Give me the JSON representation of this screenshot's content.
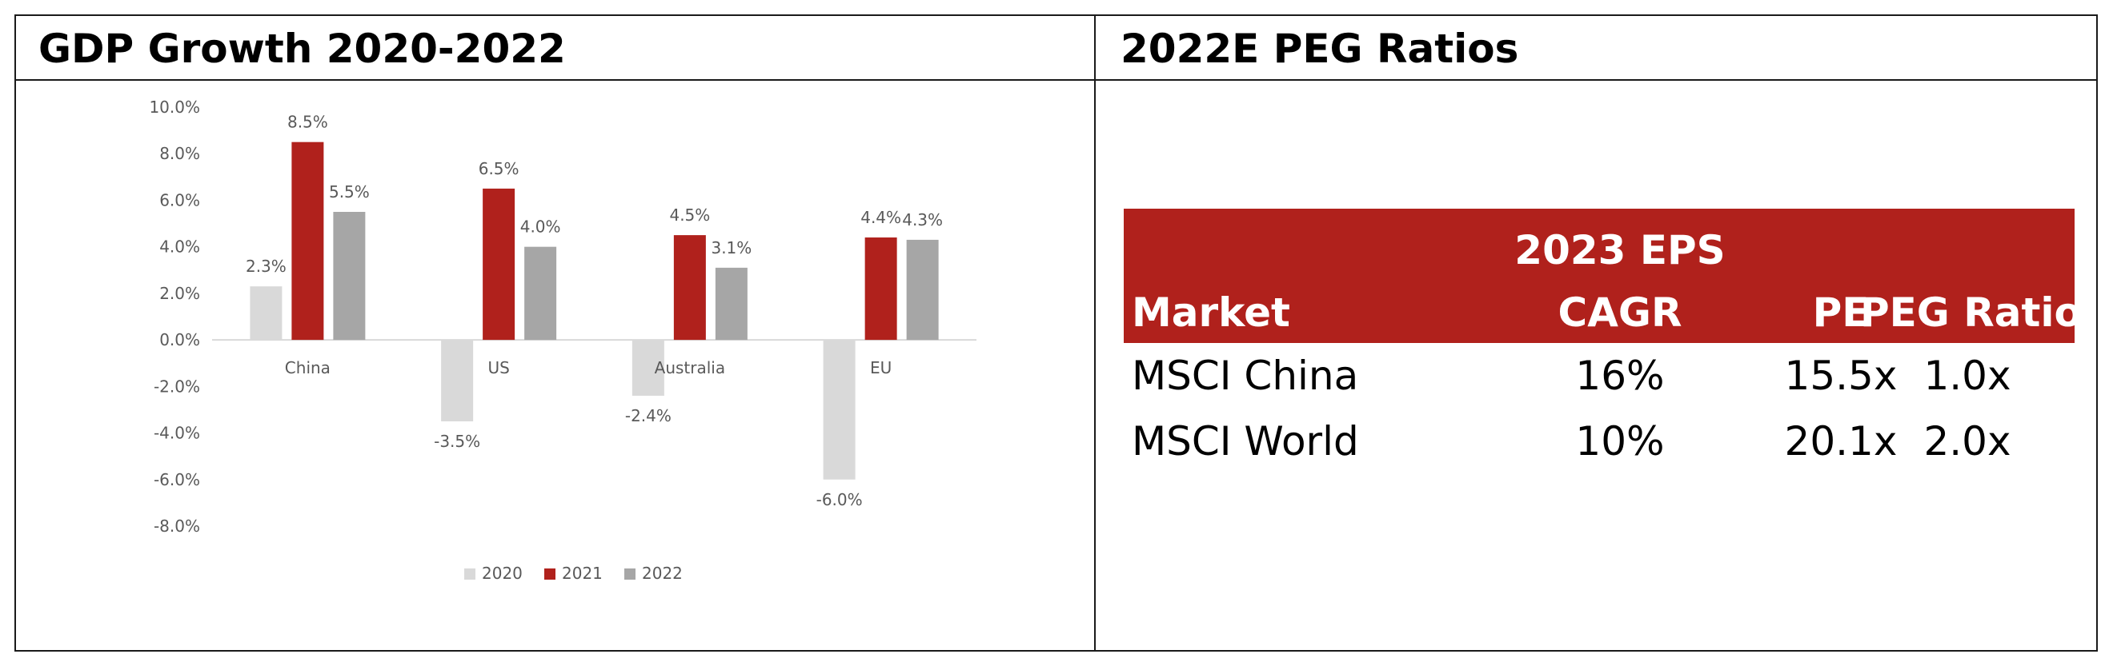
{
  "panels": {
    "gdp_title": "GDP Growth 2020-2022",
    "peg_title": "2022E PEG Ratios"
  },
  "chart_data": {
    "type": "bar",
    "title": "GDP Growth 2020-2022",
    "categories": [
      "China",
      "US",
      "Australia",
      "EU"
    ],
    "series": [
      {
        "name": "2020",
        "color": "#d9d9d9",
        "values": [
          2.3,
          -3.5,
          -2.4,
          -6.0
        ],
        "labels": [
          "2.3%",
          "-3.5%",
          "-2.4%",
          "-6.0%"
        ]
      },
      {
        "name": "2021",
        "color": "#b0211c",
        "values": [
          8.5,
          6.5,
          4.5,
          4.4
        ],
        "labels": [
          "8.5%",
          "6.5%",
          "4.5%",
          "4.4%"
        ]
      },
      {
        "name": "2022",
        "color": "#a6a6a6",
        "values": [
          5.5,
          4.0,
          3.1,
          4.3
        ],
        "labels": [
          "5.5%",
          "4.0%",
          "3.1%",
          "4.3%"
        ]
      }
    ],
    "yticks": [
      "10.0%",
      "8.0%",
      "6.0%",
      "4.0%",
      "2.0%",
      "0.0%",
      "-2.0%",
      "-4.0%",
      "-6.0%",
      "-8.0%"
    ],
    "ylim": [
      -8,
      10
    ],
    "grid": false,
    "legend": "bottom"
  },
  "peg_table": {
    "header_line1": "2023 EPS",
    "columns": [
      "Market",
      "CAGR",
      "PE",
      "PEG Ratio"
    ],
    "rows": [
      {
        "market": "MSCI China",
        "cagr": "16%",
        "pe": "15.5x",
        "peg": "1.0x"
      },
      {
        "market": "MSCI World",
        "cagr": "10%",
        "pe": "20.1x",
        "peg": "2.0x"
      }
    ],
    "header_color": "#b0211c"
  }
}
